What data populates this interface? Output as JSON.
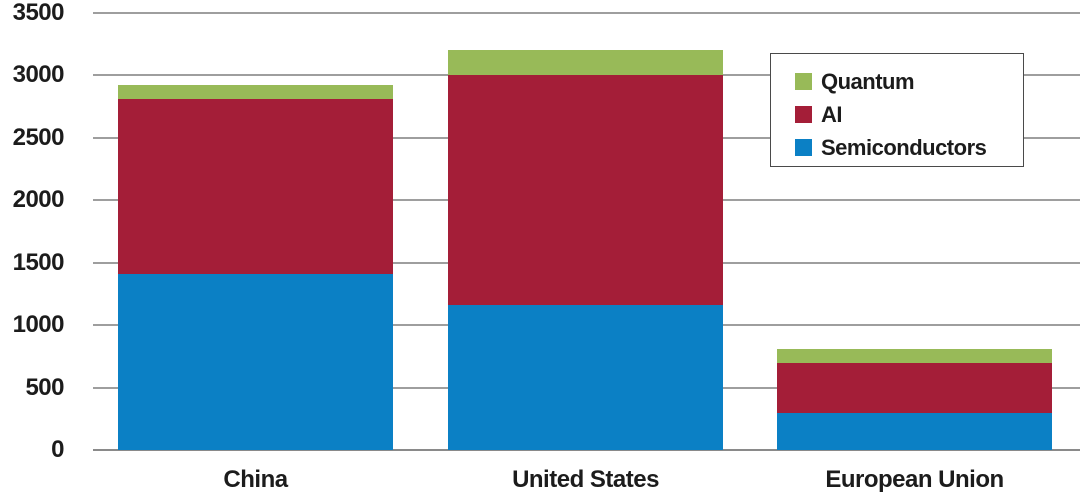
{
  "chart_data": {
    "type": "bar",
    "stacked": true,
    "title": "",
    "xlabel": "",
    "ylabel": "",
    "categories": [
      "China",
      "United States",
      "European Union"
    ],
    "series": [
      {
        "name": "Semiconductors",
        "color": "#0b80c5",
        "values": [
          1410,
          1160,
          295
        ]
      },
      {
        "name": "AI",
        "color": "#a41e38",
        "values": [
          1400,
          1840,
          400
        ]
      },
      {
        "name": "Quantum",
        "color": "#98ba58",
        "values": [
          110,
          200,
          115
        ]
      }
    ],
    "ylim": [
      0,
      3500
    ],
    "yticks": [
      0,
      500,
      1000,
      1500,
      2000,
      2500,
      3000,
      3500
    ],
    "grid": true,
    "legend": {
      "position": "top-right",
      "entries": [
        "Quantum",
        "AI",
        "Semiconductors"
      ]
    },
    "colors": {
      "background": "#ffffff",
      "gridline": "#9e9e9e",
      "baseline": "#8a8a8a",
      "text": "#1c1c1c",
      "legend_border": "#4a4a4a"
    }
  }
}
